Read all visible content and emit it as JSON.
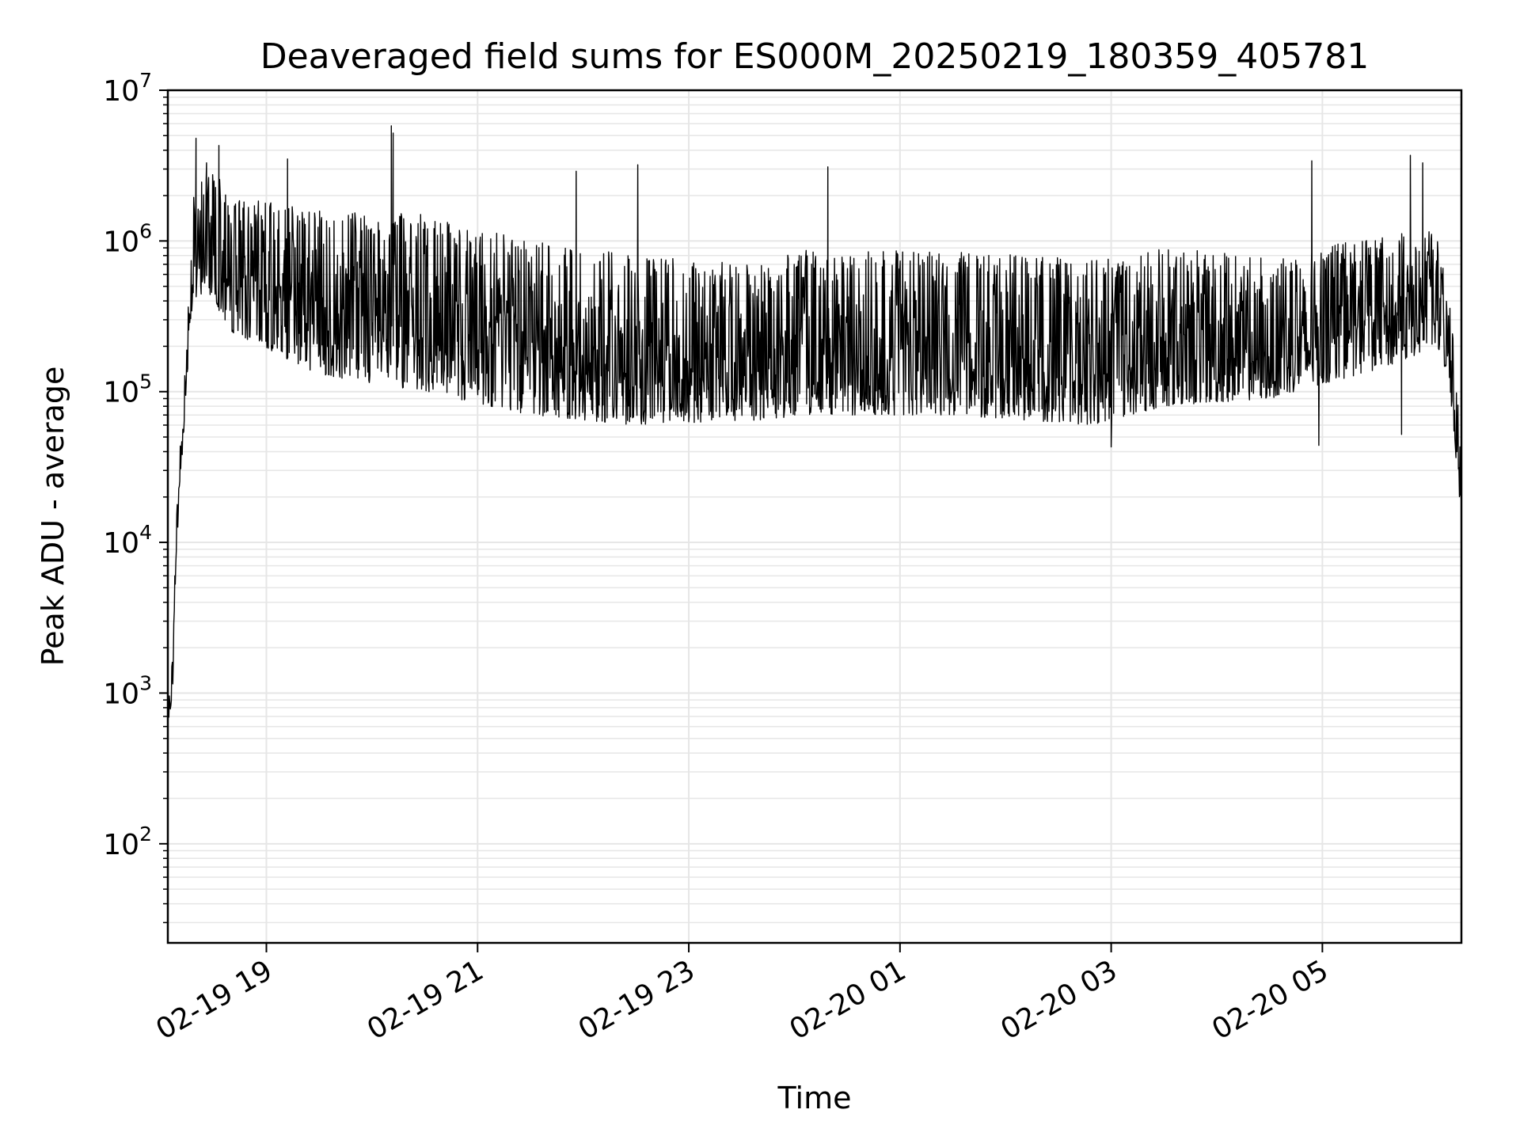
{
  "chart_data": {
    "type": "line",
    "title": "Deaveraged field sums for ES000M_20250219_180359_405781",
    "xlabel": "Time",
    "ylabel": "Peak ADU - average",
    "yscale": "log",
    "ylim": [
      22,
      10000000
    ],
    "xlim": [
      "2025-02-19T18:04:00",
      "2025-02-20T06:19:00"
    ],
    "grid": true,
    "line_color": "#000000",
    "grid_color": "#e6e6e6",
    "x_ticks": [
      {
        "value": "2025-02-19T19:00:00",
        "label": "02-19 19"
      },
      {
        "value": "2025-02-19T21:00:00",
        "label": "02-19 21"
      },
      {
        "value": "2025-02-19T23:00:00",
        "label": "02-19 23"
      },
      {
        "value": "2025-02-20T01:00:00",
        "label": "02-20 01"
      },
      {
        "value": "2025-02-20T03:00:00",
        "label": "02-20 03"
      },
      {
        "value": "2025-02-20T05:00:00",
        "label": "02-20 05"
      }
    ],
    "y_ticks": [
      {
        "value": 100,
        "base": "10",
        "exp": "2"
      },
      {
        "value": 1000,
        "base": "10",
        "exp": "3"
      },
      {
        "value": 10000,
        "base": "10",
        "exp": "4"
      },
      {
        "value": 100000,
        "base": "10",
        "exp": "5"
      },
      {
        "value": 1000000,
        "base": "10",
        "exp": "6"
      },
      {
        "value": 10000000,
        "base": "10",
        "exp": "7"
      }
    ],
    "series_profile": [
      {
        "t": "2025-02-19T18:04:00",
        "low": 500,
        "high": 800
      },
      {
        "t": "2025-02-19T18:07:00",
        "low": 1200,
        "high": 2500
      },
      {
        "t": "2025-02-19T18:10:00",
        "low": 15000,
        "high": 40000
      },
      {
        "t": "2025-02-19T18:14:00",
        "low": 80000,
        "high": 200000
      },
      {
        "t": "2025-02-19T18:17:00",
        "low": 300000,
        "high": 2000000
      },
      {
        "t": "2025-02-19T18:25:00",
        "low": 500000,
        "high": 3500000
      },
      {
        "t": "2025-02-19T18:40:00",
        "low": 250000,
        "high": 2000000
      },
      {
        "t": "2025-02-19T19:30:00",
        "low": 130000,
        "high": 1600000
      },
      {
        "t": "2025-02-19T20:30:00",
        "low": 100000,
        "high": 1500000
      },
      {
        "t": "2025-02-19T21:30:00",
        "low": 70000,
        "high": 1000000
      },
      {
        "t": "2025-02-19T22:30:00",
        "low": 60000,
        "high": 800000
      },
      {
        "t": "2025-02-19T23:50:00",
        "low": 65000,
        "high": 700000
      },
      {
        "t": "2025-02-20T00:00:00",
        "low": 70000,
        "high": 900000
      },
      {
        "t": "2025-02-20T01:30:00",
        "low": 70000,
        "high": 850000
      },
      {
        "t": "2025-02-20T02:50:00",
        "low": 60000,
        "high": 750000
      },
      {
        "t": "2025-02-20T03:30:00",
        "low": 80000,
        "high": 900000
      },
      {
        "t": "2025-02-20T04:30:00",
        "low": 90000,
        "high": 800000
      },
      {
        "t": "2025-02-20T05:40:00",
        "low": 150000,
        "high": 1100000
      },
      {
        "t": "2025-02-20T06:05:00",
        "low": 200000,
        "high": 1200000
      },
      {
        "t": "2025-02-20T06:12:00",
        "low": 120000,
        "high": 500000
      },
      {
        "t": "2025-02-20T06:19:00",
        "low": 14000,
        "high": 60000
      }
    ],
    "peaks": [
      {
        "t": "2025-02-19T18:20:00",
        "value": 4800000
      },
      {
        "t": "2025-02-19T18:26:00",
        "value": 3300000
      },
      {
        "t": "2025-02-19T18:33:00",
        "value": 4300000
      },
      {
        "t": "2025-02-19T19:12:00",
        "value": 3500000
      },
      {
        "t": "2025-02-19T20:11:00",
        "value": 5800000
      },
      {
        "t": "2025-02-19T20:12:00",
        "value": 5200000
      },
      {
        "t": "2025-02-19T21:56:00",
        "value": 2900000
      },
      {
        "t": "2025-02-19T22:31:00",
        "value": 3200000
      },
      {
        "t": "2025-02-20T00:19:00",
        "value": 3100000
      },
      {
        "t": "2025-02-20T04:54:00",
        "value": 3400000
      },
      {
        "t": "2025-02-20T05:50:00",
        "value": 3700000
      },
      {
        "t": "2025-02-20T05:57:00",
        "value": 3300000
      }
    ],
    "dips": [
      {
        "t": "2025-02-20T03:00:00",
        "value": 43000
      },
      {
        "t": "2025-02-20T04:58:00",
        "value": 44000
      },
      {
        "t": "2025-02-20T05:45:00",
        "value": 52000
      }
    ]
  }
}
